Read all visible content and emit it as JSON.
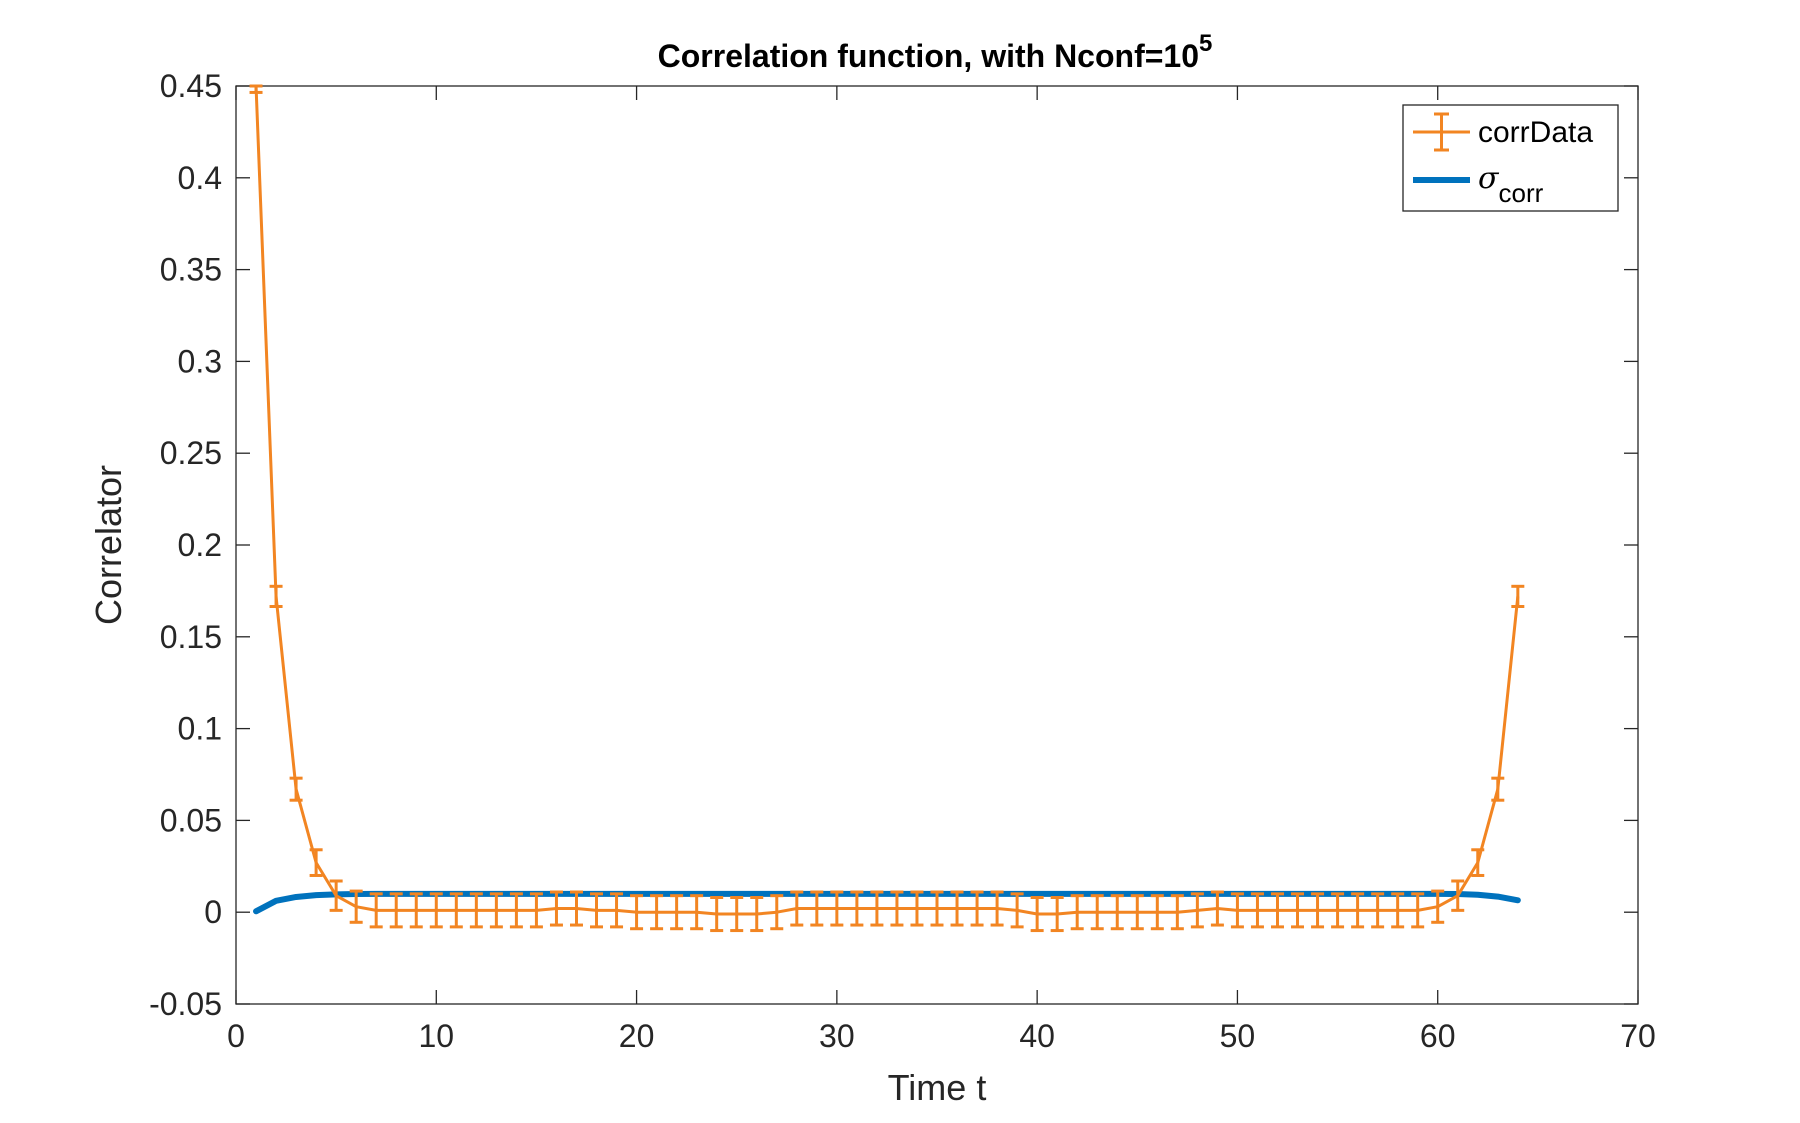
{
  "chart_data": {
    "type": "line",
    "title": "Correlation function, with Nconf=10",
    "title_superscript": "5",
    "xlabel": "Time t",
    "ylabel": "Correlator",
    "xlim": [
      0,
      70
    ],
    "ylim": [
      -0.05,
      0.45
    ],
    "xticks": [
      "0",
      "10",
      "20",
      "30",
      "40",
      "50",
      "60",
      "70"
    ],
    "yticks": [
      "-0.05",
      "0",
      "0.05",
      "0.1",
      "0.15",
      "0.2",
      "0.25",
      "0.3",
      "0.35",
      "0.4",
      "0.45"
    ],
    "grid": false,
    "legend_position": "top-right",
    "legend": {
      "corrData": "corrData",
      "sigma_symbol": "σ",
      "sigma_subscript": "corr"
    },
    "colors": {
      "corrData": "#F28522",
      "sigma": "#0072BD",
      "axes": "#262626"
    },
    "x": [
      1,
      2,
      3,
      4,
      5,
      6,
      7,
      8,
      9,
      10,
      11,
      12,
      13,
      14,
      15,
      16,
      17,
      18,
      19,
      20,
      21,
      22,
      23,
      24,
      25,
      26,
      27,
      28,
      29,
      30,
      31,
      32,
      33,
      34,
      35,
      36,
      37,
      38,
      39,
      40,
      41,
      42,
      43,
      44,
      45,
      46,
      47,
      48,
      49,
      50,
      51,
      52,
      53,
      54,
      55,
      56,
      57,
      58,
      59,
      60,
      61,
      62,
      63,
      64
    ],
    "series": [
      {
        "name": "corrData",
        "values": [
          0.45,
          0.172,
          0.067,
          0.027,
          0.009,
          0.003,
          0.001,
          0.001,
          0.001,
          0.001,
          0.001,
          0.001,
          0.001,
          0.001,
          0.001,
          0.002,
          0.002,
          0.001,
          0.001,
          0.0,
          0.0,
          0.0,
          0.0,
          -0.001,
          -0.001,
          -0.001,
          0.0,
          0.002,
          0.002,
          0.002,
          0.002,
          0.002,
          0.002,
          0.002,
          0.002,
          0.002,
          0.002,
          0.002,
          0.001,
          -0.001,
          -0.001,
          0.0,
          0.0,
          0.0,
          0.0,
          0.0,
          0.0,
          0.001,
          0.002,
          0.001,
          0.001,
          0.001,
          0.001,
          0.001,
          0.001,
          0.001,
          0.001,
          0.001,
          0.001,
          0.003,
          0.009,
          0.027,
          0.067,
          0.172
        ],
        "errors": [
          0.0035,
          0.0055,
          0.006,
          0.007,
          0.008,
          0.0085,
          0.009,
          0.009,
          0.009,
          0.009,
          0.009,
          0.009,
          0.009,
          0.009,
          0.009,
          0.009,
          0.009,
          0.009,
          0.009,
          0.009,
          0.009,
          0.009,
          0.009,
          0.009,
          0.009,
          0.009,
          0.009,
          0.009,
          0.009,
          0.009,
          0.009,
          0.009,
          0.009,
          0.009,
          0.009,
          0.009,
          0.009,
          0.009,
          0.009,
          0.009,
          0.009,
          0.009,
          0.009,
          0.009,
          0.009,
          0.009,
          0.009,
          0.009,
          0.009,
          0.009,
          0.009,
          0.009,
          0.009,
          0.009,
          0.009,
          0.009,
          0.009,
          0.009,
          0.009,
          0.0085,
          0.008,
          0.007,
          0.006,
          0.0055
        ]
      },
      {
        "name": "σ corr",
        "values": [
          0.0005,
          0.0062,
          0.0083,
          0.0093,
          0.0097,
          0.0099,
          0.01,
          0.01,
          0.01,
          0.01,
          0.01,
          0.01,
          0.01,
          0.01,
          0.01,
          0.01,
          0.01,
          0.01,
          0.01,
          0.01,
          0.01,
          0.01,
          0.01,
          0.01,
          0.01,
          0.01,
          0.01,
          0.01,
          0.01,
          0.01,
          0.01,
          0.01,
          0.01,
          0.01,
          0.01,
          0.01,
          0.01,
          0.01,
          0.01,
          0.01,
          0.01,
          0.01,
          0.01,
          0.01,
          0.01,
          0.01,
          0.01,
          0.01,
          0.01,
          0.01,
          0.01,
          0.01,
          0.01,
          0.01,
          0.01,
          0.01,
          0.01,
          0.01,
          0.01,
          0.01,
          0.0099,
          0.0095,
          0.0085,
          0.0065
        ]
      }
    ]
  }
}
